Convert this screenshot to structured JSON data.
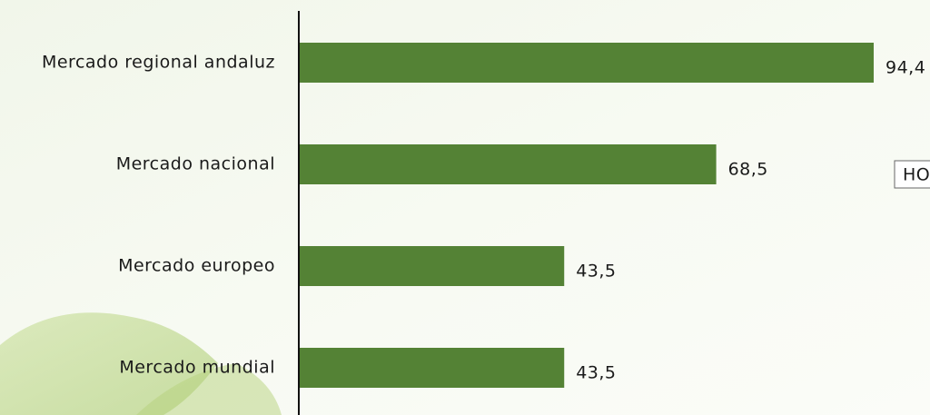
{
  "chart_data": {
    "type": "bar",
    "orientation": "horizontal",
    "categories": [
      "Mercado regional andaluz",
      "Mercado nacional",
      "Mercado europeo",
      "Mercado mundial"
    ],
    "values": [
      94.4,
      68.5,
      43.5,
      43.5
    ],
    "value_labels": [
      "94,4",
      "68,5",
      "43,5",
      "43,5"
    ],
    "color": "#548235",
    "annotation": "HO"
  }
}
